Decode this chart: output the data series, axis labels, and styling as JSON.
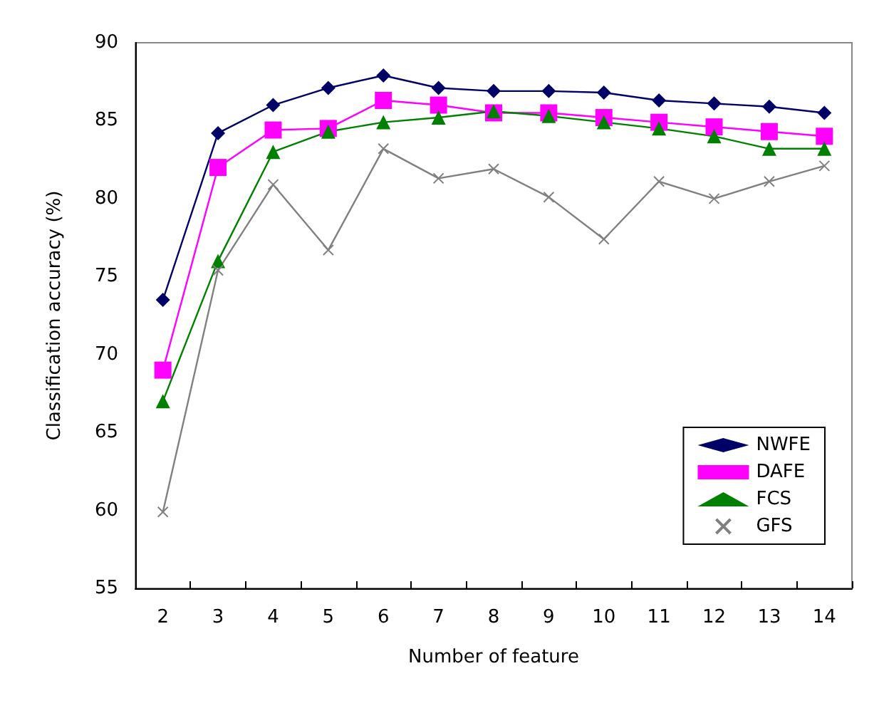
{
  "chart_data": {
    "type": "line",
    "xlabel": "Number of feature",
    "ylabel": "Classification accuracy (%)",
    "categories": [
      "2",
      "3",
      "4",
      "5",
      "6",
      "7",
      "8",
      "9",
      "10",
      "11",
      "12",
      "13",
      "14"
    ],
    "ylim": [
      55,
      90
    ],
    "yticks": [
      55,
      60,
      65,
      70,
      75,
      80,
      85,
      90
    ],
    "grid": false,
    "legend": "bottom right",
    "series": [
      {
        "name": "NWFE",
        "color": "#000066",
        "marker": "diamond",
        "values": [
          73.5,
          84.2,
          86,
          87.1,
          87.9,
          87.1,
          86.9,
          86.9,
          86.8,
          86.3,
          86.1,
          85.9,
          85.5
        ]
      },
      {
        "name": "DAFE",
        "color": "#ff00ff",
        "marker": "square",
        "values": [
          69,
          82,
          84.4,
          84.5,
          86.3,
          86,
          85.5,
          85.5,
          85.2,
          84.9,
          84.6,
          84.3,
          84
        ]
      },
      {
        "name": "FCS",
        "color": "#008000",
        "marker": "triangle",
        "values": [
          67,
          76,
          83,
          84.3,
          84.9,
          85.2,
          85.6,
          85.3,
          84.9,
          84.5,
          84,
          83.2,
          83.2
        ]
      },
      {
        "name": "GFS",
        "color": "#808080",
        "marker": "cross",
        "values": [
          59.9,
          75.4,
          80.9,
          76.7,
          83.2,
          81.3,
          81.9,
          80.1,
          77.4,
          81.1,
          80,
          81.1,
          82.1
        ]
      }
    ]
  }
}
